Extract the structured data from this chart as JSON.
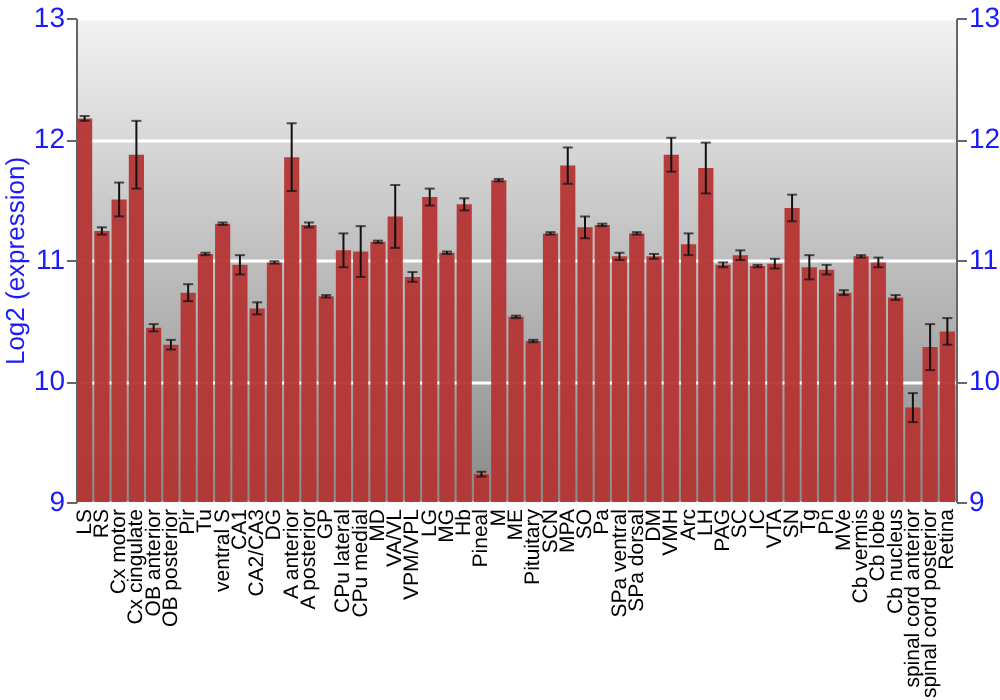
{
  "chart_data": {
    "type": "bar",
    "ylabel": "Log2 (expression)",
    "categories": [
      "LS",
      "RS",
      "Cx motor",
      "Cx cingulate",
      "OB anterior",
      "OB posterior",
      "Pir",
      "Tu",
      "ventral S",
      "CA1",
      "CA2/CA3",
      "DG",
      "A anterior",
      "A posterior",
      "GP",
      "CPu lateral",
      "CPu medial",
      "MD",
      "VA/VL",
      "VPM/VPL",
      "LG",
      "MG",
      "Hb",
      "Pineal",
      "M",
      "ME",
      "Pituitary",
      "SCN",
      "MPA",
      "SO",
      "Pa",
      "SPa ventral",
      "SPa dorsal",
      "DM",
      "VMH",
      "Arc",
      "LH",
      "PAG",
      "SC",
      "IC",
      "VTA",
      "SN",
      "Tg",
      "Pn",
      "MVe",
      "Cb vermis",
      "Cb lobe",
      "Cb nucleus",
      "spinal cord anterior",
      "spinal cord posterior",
      "Retina"
    ],
    "values": [
      12.17,
      11.24,
      11.5,
      11.87,
      10.44,
      10.3,
      10.73,
      11.05,
      11.3,
      10.96,
      10.6,
      10.98,
      11.85,
      11.29,
      10.7,
      11.08,
      11.07,
      11.15,
      11.36,
      10.86,
      11.52,
      11.06,
      11.46,
      9.23,
      11.66,
      10.53,
      10.33,
      11.22,
      11.78,
      11.27,
      11.29,
      11.03,
      11.22,
      11.03,
      11.87,
      11.13,
      11.76,
      10.96,
      11.04,
      10.95,
      10.97,
      11.43,
      10.94,
      10.92,
      10.73,
      11.03,
      10.98,
      10.69,
      9.78,
      10.28,
      10.41
    ],
    "errors": [
      0.02,
      0.03,
      0.14,
      0.28,
      0.03,
      0.04,
      0.07,
      0.01,
      0.01,
      0.08,
      0.05,
      0.01,
      0.28,
      0.02,
      0.01,
      0.14,
      0.21,
      0.01,
      0.26,
      0.04,
      0.07,
      0.01,
      0.05,
      0.02,
      0.01,
      0.01,
      0.01,
      0.01,
      0.15,
      0.09,
      0.01,
      0.03,
      0.01,
      0.02,
      0.14,
      0.09,
      0.21,
      0.02,
      0.04,
      0.01,
      0.04,
      0.11,
      0.1,
      0.04,
      0.02,
      0.01,
      0.04,
      0.02,
      0.12,
      0.19,
      0.11
    ],
    "color": "#b53535",
    "ylim": [
      9,
      13
    ],
    "yticks": [
      9,
      10,
      11,
      12,
      13
    ],
    "y2lim": [
      9,
      13
    ],
    "y2ticks": [
      9,
      10,
      11,
      12,
      13
    ],
    "grid": "y"
  }
}
